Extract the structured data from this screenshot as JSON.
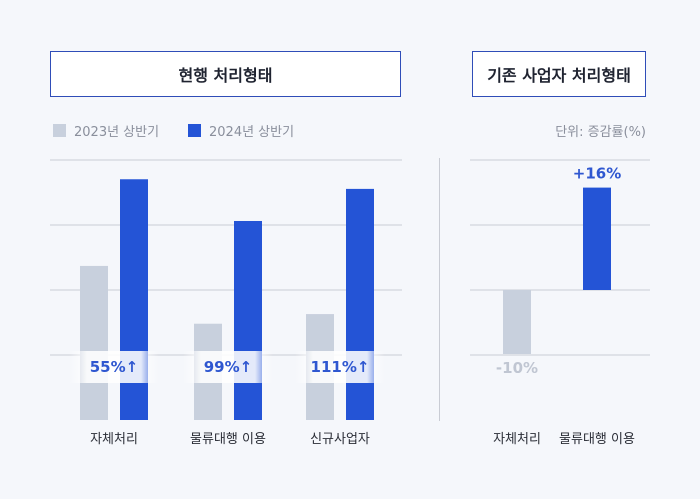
{
  "titles": {
    "current": "현행 처리형태",
    "existing": "기존 사업자 처리형태"
  },
  "legend": {
    "y2023": "2023년 상반기",
    "y2024": "2024년 상반기"
  },
  "unit": "단위: 증감률(%)",
  "colors": {
    "y2023": "#c8d0dd",
    "y2024": "#2454d6",
    "grid": "#c9ccd4",
    "accent": "#2f57d0",
    "negative": "#c0c6d2"
  },
  "chart_data": [
    {
      "type": "bar",
      "categories": [
        "자체처리",
        "물류대행 이용",
        "신규사업자"
      ],
      "series": [
        {
          "name": "2023년 상반기",
          "values": [
            48,
            30,
            33
          ]
        },
        {
          "name": "2024년 상반기",
          "values": [
            75,
            62,
            72
          ]
        }
      ],
      "ylim": [
        0,
        81
      ],
      "grid": true,
      "legend": "top-left",
      "annotations": [
        "55%↑",
        "99%↑",
        "111%↑"
      ]
    },
    {
      "type": "bar",
      "categories": [
        "자체처리",
        "물류대행 이용"
      ],
      "values": [
        -10,
        16
      ],
      "labels": [
        "-10%",
        "+16%"
      ],
      "grid": true
    }
  ]
}
